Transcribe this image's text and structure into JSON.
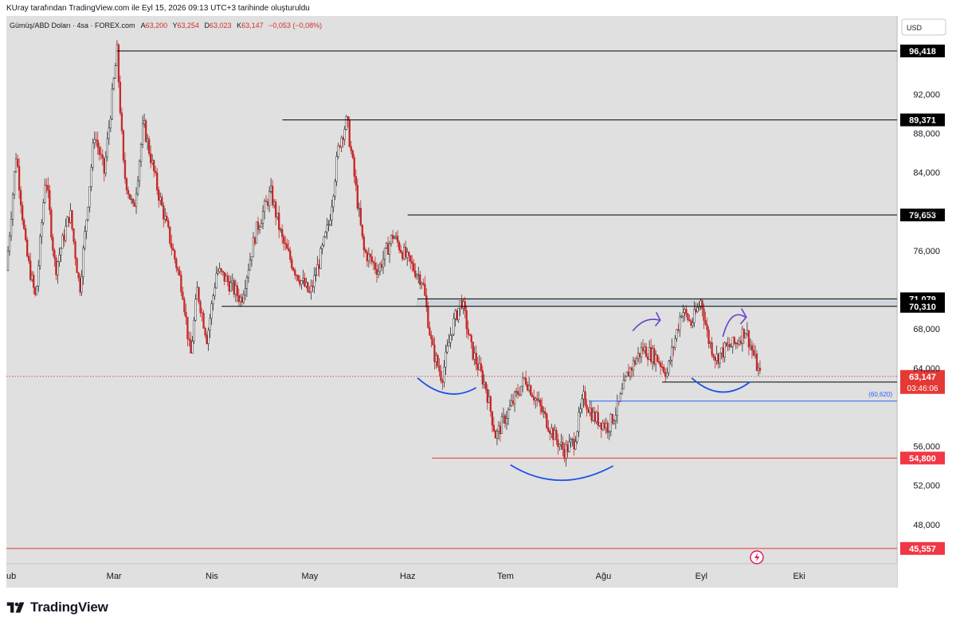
{
  "header": {
    "snapshot_text": "KUray tarafından TradingView.com ile Eyl 15, 2026 09:13 UTC+3 tarihinde oluşturuldu"
  },
  "symbol_bar": {
    "symbol": "Gümüş/ABD Doları · 4sa · FOREX.com",
    "open_label": "A",
    "open": "63,200",
    "high_label": "Y",
    "high": "63,254",
    "low_label": "D",
    "low": "63,023",
    "close_label": "K",
    "close": "63,147",
    "change": "−0,053 (−0,08%)"
  },
  "currency_button": "USD",
  "footer": {
    "brand": "TradingView",
    "logo_icon": "tradingview-logo-icon"
  },
  "colors": {
    "background": "#e0e0e0",
    "up": "#2d2d2d",
    "down": "#c62828",
    "level_line": "#000000",
    "support_red": "#e53935",
    "blue_line": "#2962ff",
    "curve_blue": "#1e53e5",
    "arrow_purple": "#6a3fc7",
    "zone_fill": "#c7d0da"
  },
  "chart_data": {
    "type": "candlestick",
    "symbol": "Gümüş/ABD Doları",
    "timeframe": "4sa",
    "y_range": [
      44,
      100
    ],
    "x_range_months": [
      1.8,
      10.9
    ],
    "y_ticks": [
      "92,000",
      "88,000",
      "84,000",
      "80,000",
      "76,000",
      "68,000",
      "64,000",
      "56,000",
      "52,000",
      "48,000"
    ],
    "y_tick_values": [
      92,
      88,
      84,
      80,
      76,
      68,
      64,
      56,
      52,
      48
    ],
    "x_ticks": [
      {
        "label": "ub",
        "t": 1.8
      },
      {
        "label": "Mar",
        "t": 2.9
      },
      {
        "label": "Nis",
        "t": 3.9
      },
      {
        "label": "May",
        "t": 4.9
      },
      {
        "label": "Haz",
        "t": 5.9
      },
      {
        "label": "Tem",
        "t": 6.9
      },
      {
        "label": "Ağu",
        "t": 7.9
      },
      {
        "label": "Eyl",
        "t": 8.9
      },
      {
        "label": "Eki",
        "t": 9.9
      }
    ],
    "price_path": [
      [
        1.8,
        74
      ],
      [
        1.9,
        86
      ],
      [
        2.0,
        76
      ],
      [
        2.1,
        71
      ],
      [
        2.2,
        84
      ],
      [
        2.3,
        74
      ],
      [
        2.45,
        80
      ],
      [
        2.55,
        72
      ],
      [
        2.7,
        88
      ],
      [
        2.8,
        84
      ],
      [
        2.93,
        96.4
      ],
      [
        3.0,
        84
      ],
      [
        3.1,
        80
      ],
      [
        3.2,
        89
      ],
      [
        3.35,
        82
      ],
      [
        3.5,
        76
      ],
      [
        3.6,
        72
      ],
      [
        3.68,
        65
      ],
      [
        3.75,
        72
      ],
      [
        3.85,
        67
      ],
      [
        3.95,
        74
      ],
      [
        4.05,
        73
      ],
      [
        4.2,
        71
      ],
      [
        4.35,
        78
      ],
      [
        4.5,
        82
      ],
      [
        4.62,
        77
      ],
      [
        4.75,
        74
      ],
      [
        4.9,
        71.5
      ],
      [
        5.0,
        75
      ],
      [
        5.1,
        79
      ],
      [
        5.2,
        87
      ],
      [
        5.28,
        89.3
      ],
      [
        5.35,
        84
      ],
      [
        5.45,
        76
      ],
      [
        5.6,
        74
      ],
      [
        5.75,
        77.6
      ],
      [
        5.9,
        75
      ],
      [
        6.05,
        73
      ],
      [
        6.15,
        66
      ],
      [
        6.25,
        63
      ],
      [
        6.35,
        68
      ],
      [
        6.45,
        71
      ],
      [
        6.55,
        66
      ],
      [
        6.7,
        62
      ],
      [
        6.8,
        57
      ],
      [
        6.95,
        60
      ],
      [
        7.1,
        63
      ],
      [
        7.25,
        60
      ],
      [
        7.4,
        57
      ],
      [
        7.5,
        55.5
      ],
      [
        7.6,
        56.5
      ],
      [
        7.7,
        61
      ],
      [
        7.8,
        59
      ],
      [
        7.95,
        58
      ],
      [
        8.05,
        60
      ],
      [
        8.15,
        63.5
      ],
      [
        8.3,
        66
      ],
      [
        8.45,
        65
      ],
      [
        8.55,
        63.5
      ],
      [
        8.7,
        70
      ],
      [
        8.8,
        68.5
      ],
      [
        8.9,
        71
      ],
      [
        8.97,
        67
      ],
      [
        9.05,
        65
      ],
      [
        9.15,
        66
      ],
      [
        9.25,
        66.5
      ],
      [
        9.35,
        68
      ],
      [
        9.45,
        64.8
      ],
      [
        9.5,
        63.15
      ]
    ],
    "horizontal_levels": [
      {
        "price_label": "96,418",
        "value": 96.418,
        "from_t": 2.93,
        "color": "level_line"
      },
      {
        "price_label": "89,371",
        "value": 89.371,
        "from_t": 4.62,
        "color": "level_line"
      },
      {
        "price_label": "79,653",
        "value": 79.653,
        "from_t": 5.9,
        "color": "level_line"
      },
      {
        "price_label": "71,079",
        "value": 71.079,
        "from_t": 6.0,
        "color": "level_line"
      },
      {
        "price_label": "70,310",
        "value": 70.31,
        "from_t": 4.0,
        "color": "level_line"
      },
      {
        "price_label": "62,570",
        "value": 62.57,
        "from_t": 8.5,
        "color": "level_line"
      },
      {
        "price_label": "54,800",
        "value": 54.8,
        "from_t": 6.15,
        "color": "support_red"
      },
      {
        "price_label": "45,557",
        "value": 45.557,
        "from_t": 1.8,
        "color": "support_red"
      }
    ],
    "blue_level": {
      "label": "(60,620)",
      "value": 60.62,
      "from_t": 7.75
    },
    "resistance_zone": [
      70.31,
      71.079
    ],
    "current_price": {
      "label": "63,147",
      "value": 63.147,
      "countdown": "03:46:06"
    },
    "annotations": {
      "curves": [
        "inverse-head-shoulders-left-shoulder",
        "inverse-head-shoulders-head",
        "inverse-head-shoulders-right-shoulder"
      ],
      "arrows": [
        "purple-arrow-left",
        "purple-arrow-right"
      ]
    }
  }
}
